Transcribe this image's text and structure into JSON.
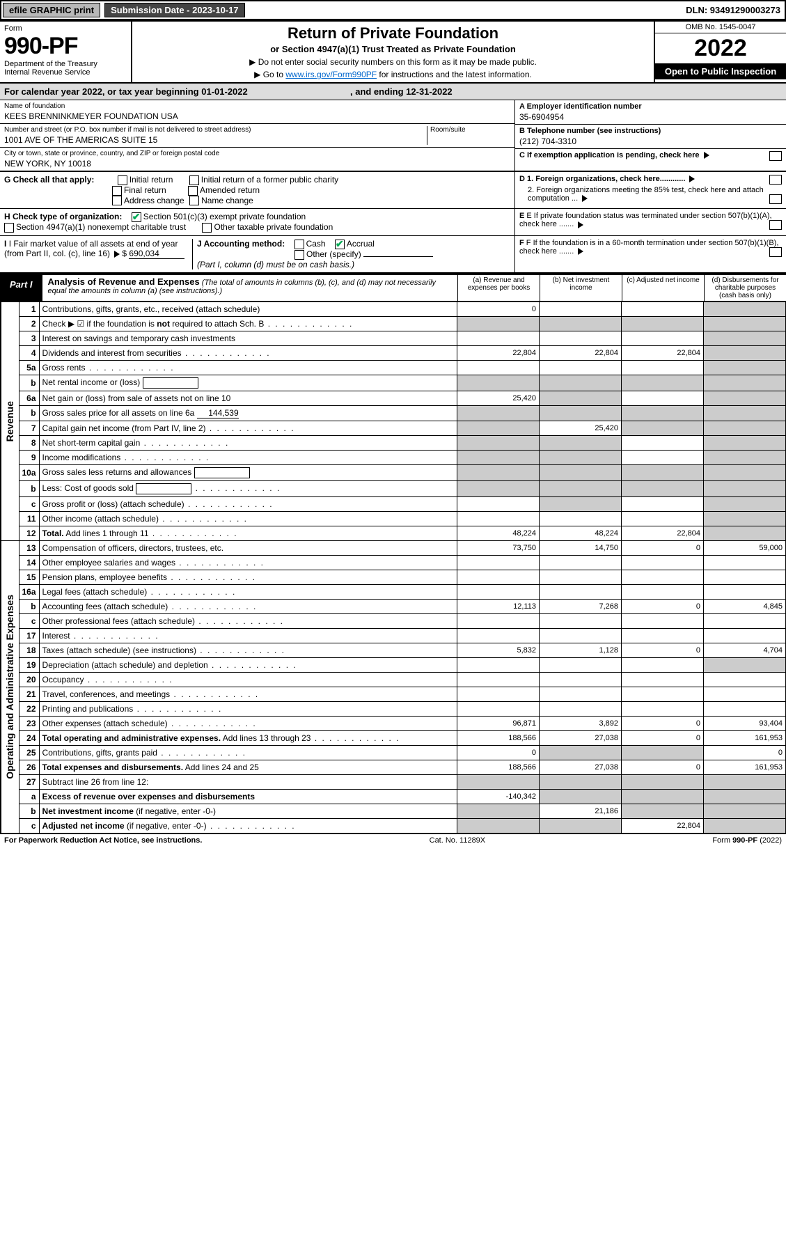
{
  "header": {
    "efile": "efile GRAPHIC print",
    "submission": "Submission Date - 2023-10-17",
    "dln": "DLN: 93491290003273"
  },
  "title_block": {
    "form_label": "Form",
    "form_number": "990-PF",
    "dept": "Department of the Treasury",
    "irs": "Internal Revenue Service",
    "main_title": "Return of Private Foundation",
    "subtitle": "or Section 4947(a)(1) Trust Treated as Private Foundation",
    "inst1": "▶ Do not enter social security numbers on this form as it may be made public.",
    "inst2_pre": "▶ Go to ",
    "inst2_link": "www.irs.gov/Form990PF",
    "inst2_post": " for instructions and the latest information.",
    "omb": "OMB No. 1545-0047",
    "year": "2022",
    "open": "Open to Public Inspection"
  },
  "cal_year": {
    "text_a": "For calendar year 2022, or tax year beginning ",
    "begin": "01-01-2022",
    "text_b": " , and ending ",
    "end": "12-31-2022"
  },
  "foundation": {
    "name_label": "Name of foundation",
    "name": "KEES BRENNINKMEYER FOUNDATION USA",
    "addr_label": "Number and street (or P.O. box number if mail is not delivered to street address)",
    "addr": "1001 AVE OF THE AMERICAS SUITE 15",
    "room_label": "Room/suite",
    "city_label": "City or town, state or province, country, and ZIP or foreign postal code",
    "city": "NEW YORK, NY  10018",
    "a_label": "A Employer identification number",
    "a_val": "35-6904954",
    "b_label": "B Telephone number (see instructions)",
    "b_val": "(212) 704-3310",
    "c_label": "C If exemption application is pending, check here"
  },
  "g_section": {
    "label": "G Check all that apply:",
    "opts": [
      "Initial return",
      "Initial return of a former public charity",
      "Final return",
      "Amended return",
      "Address change",
      "Name change"
    ]
  },
  "d_section": {
    "d1": "D 1. Foreign organizations, check here............",
    "d2": "2. Foreign organizations meeting the 85% test, check here and attach computation ..."
  },
  "h_section": {
    "label": "H Check type of organization:",
    "opt1": "Section 501(c)(3) exempt private foundation",
    "opt2": "Section 4947(a)(1) nonexempt charitable trust",
    "opt3": "Other taxable private foundation"
  },
  "e_section": "E If private foundation status was terminated under section 507(b)(1)(A), check here .......",
  "i_section": {
    "label": "I Fair market value of all assets at end of year (from Part II, col. (c), line 16)",
    "val": "690,034"
  },
  "j_section": {
    "label": "J Accounting method:",
    "cash": "Cash",
    "accrual": "Accrual",
    "other": "Other (specify)",
    "note": "(Part I, column (d) must be on cash basis.)"
  },
  "f_section": "F If the foundation is in a 60-month termination under section 507(b)(1)(B), check here .......",
  "part1": {
    "tab": "Part I",
    "title": "Analysis of Revenue and Expenses",
    "note": "(The total of amounts in columns (b), (c), and (d) may not necessarily equal the amounts in column (a) (see instructions).)",
    "cols": {
      "a": "(a) Revenue and expenses per books",
      "b": "(b) Net investment income",
      "c": "(c) Adjusted net income",
      "d": "(d) Disbursements for charitable purposes (cash basis only)"
    }
  },
  "side_labels": {
    "revenue": "Revenue",
    "expenses": "Operating and Administrative Expenses"
  },
  "rows": [
    {
      "n": "1",
      "desc": "Contributions, gifts, grants, etc., received (attach schedule)",
      "a": "0",
      "b": "",
      "c": "",
      "d": "shade"
    },
    {
      "n": "2",
      "desc": "Check ▶ ☑ if the foundation is <b>not</b> required to attach Sch. B",
      "dots": true,
      "a": "shade",
      "b": "shade",
      "c": "shade",
      "d": "shade"
    },
    {
      "n": "3",
      "desc": "Interest on savings and temporary cash investments",
      "a": "",
      "b": "",
      "c": "",
      "d": "shade"
    },
    {
      "n": "4",
      "desc": "Dividends and interest from securities",
      "dots": true,
      "a": "22,804",
      "b": "22,804",
      "c": "22,804",
      "d": "shade"
    },
    {
      "n": "5a",
      "desc": "Gross rents",
      "dots": true,
      "a": "",
      "b": "",
      "c": "",
      "d": "shade"
    },
    {
      "n": "b",
      "desc": "Net rental income or (loss)",
      "inline": true,
      "a": "shade",
      "b": "shade",
      "c": "shade",
      "d": "shade"
    },
    {
      "n": "6a",
      "desc": "Net gain or (loss) from sale of assets not on line 10",
      "a": "25,420",
      "b": "shade",
      "c": "",
      "d": "shade"
    },
    {
      "n": "b",
      "desc": "Gross sales price for all assets on line 6a",
      "inline_val": "144,539",
      "a": "shade",
      "b": "shade",
      "c": "shade",
      "d": "shade"
    },
    {
      "n": "7",
      "desc": "Capital gain net income (from Part IV, line 2)",
      "dots": true,
      "a": "shade",
      "b": "25,420",
      "c": "shade",
      "d": "shade"
    },
    {
      "n": "8",
      "desc": "Net short-term capital gain",
      "dots": true,
      "a": "shade",
      "b": "shade",
      "c": "",
      "d": "shade"
    },
    {
      "n": "9",
      "desc": "Income modifications",
      "dots": true,
      "a": "shade",
      "b": "shade",
      "c": "",
      "d": "shade"
    },
    {
      "n": "10a",
      "desc": "Gross sales less returns and allowances",
      "inline": true,
      "a": "shade",
      "b": "shade",
      "c": "shade",
      "d": "shade"
    },
    {
      "n": "b",
      "desc": "Less: Cost of goods sold",
      "dots": true,
      "inline": true,
      "a": "shade",
      "b": "shade",
      "c": "shade",
      "d": "shade"
    },
    {
      "n": "c",
      "desc": "Gross profit or (loss) (attach schedule)",
      "dots": true,
      "a": "",
      "b": "shade",
      "c": "",
      "d": "shade"
    },
    {
      "n": "11",
      "desc": "Other income (attach schedule)",
      "dots": true,
      "a": "",
      "b": "",
      "c": "",
      "d": "shade"
    },
    {
      "n": "12",
      "desc": "<b>Total.</b> Add lines 1 through 11",
      "dots": true,
      "a": "48,224",
      "b": "48,224",
      "c": "22,804",
      "d": "shade"
    },
    {
      "n": "13",
      "desc": "Compensation of officers, directors, trustees, etc.",
      "a": "73,750",
      "b": "14,750",
      "c": "0",
      "d": "59,000"
    },
    {
      "n": "14",
      "desc": "Other employee salaries and wages",
      "dots": true,
      "a": "",
      "b": "",
      "c": "",
      "d": ""
    },
    {
      "n": "15",
      "desc": "Pension plans, employee benefits",
      "dots": true,
      "a": "",
      "b": "",
      "c": "",
      "d": ""
    },
    {
      "n": "16a",
      "desc": "Legal fees (attach schedule)",
      "dots": true,
      "a": "",
      "b": "",
      "c": "",
      "d": ""
    },
    {
      "n": "b",
      "desc": "Accounting fees (attach schedule)",
      "dots": true,
      "a": "12,113",
      "b": "7,268",
      "c": "0",
      "d": "4,845"
    },
    {
      "n": "c",
      "desc": "Other professional fees (attach schedule)",
      "dots": true,
      "a": "",
      "b": "",
      "c": "",
      "d": ""
    },
    {
      "n": "17",
      "desc": "Interest",
      "dots": true,
      "a": "",
      "b": "",
      "c": "",
      "d": ""
    },
    {
      "n": "18",
      "desc": "Taxes (attach schedule) (see instructions)",
      "dots": true,
      "a": "5,832",
      "b": "1,128",
      "c": "0",
      "d": "4,704"
    },
    {
      "n": "19",
      "desc": "Depreciation (attach schedule) and depletion",
      "dots": true,
      "a": "",
      "b": "",
      "c": "",
      "d": "shade"
    },
    {
      "n": "20",
      "desc": "Occupancy",
      "dots": true,
      "a": "",
      "b": "",
      "c": "",
      "d": ""
    },
    {
      "n": "21",
      "desc": "Travel, conferences, and meetings",
      "dots": true,
      "a": "",
      "b": "",
      "c": "",
      "d": ""
    },
    {
      "n": "22",
      "desc": "Printing and publications",
      "dots": true,
      "a": "",
      "b": "",
      "c": "",
      "d": ""
    },
    {
      "n": "23",
      "desc": "Other expenses (attach schedule)",
      "dots": true,
      "a": "96,871",
      "b": "3,892",
      "c": "0",
      "d": "93,404"
    },
    {
      "n": "24",
      "desc": "<b>Total operating and administrative expenses.</b> Add lines 13 through 23",
      "dots": true,
      "a": "188,566",
      "b": "27,038",
      "c": "0",
      "d": "161,953"
    },
    {
      "n": "25",
      "desc": "Contributions, gifts, grants paid",
      "dots": true,
      "a": "0",
      "b": "shade",
      "c": "shade",
      "d": "0"
    },
    {
      "n": "26",
      "desc": "<b>Total expenses and disbursements.</b> Add lines 24 and 25",
      "a": "188,566",
      "b": "27,038",
      "c": "0",
      "d": "161,953"
    },
    {
      "n": "27",
      "desc": "Subtract line 26 from line 12:",
      "a": "shade",
      "b": "shade",
      "c": "shade",
      "d": "shade"
    },
    {
      "n": "a",
      "desc": "<b>Excess of revenue over expenses and disbursements</b>",
      "a": "-140,342",
      "b": "shade",
      "c": "shade",
      "d": "shade"
    },
    {
      "n": "b",
      "desc": "<b>Net investment income</b> (if negative, enter -0-)",
      "a": "shade",
      "b": "21,186",
      "c": "shade",
      "d": "shade"
    },
    {
      "n": "c",
      "desc": "<b>Adjusted net income</b> (if negative, enter -0-)",
      "dots": true,
      "a": "shade",
      "b": "shade",
      "c": "22,804",
      "d": "shade"
    }
  ],
  "footer": {
    "left": "For Paperwork Reduction Act Notice, see instructions.",
    "mid": "Cat. No. 11289X",
    "right": "Form 990-PF (2022)"
  }
}
